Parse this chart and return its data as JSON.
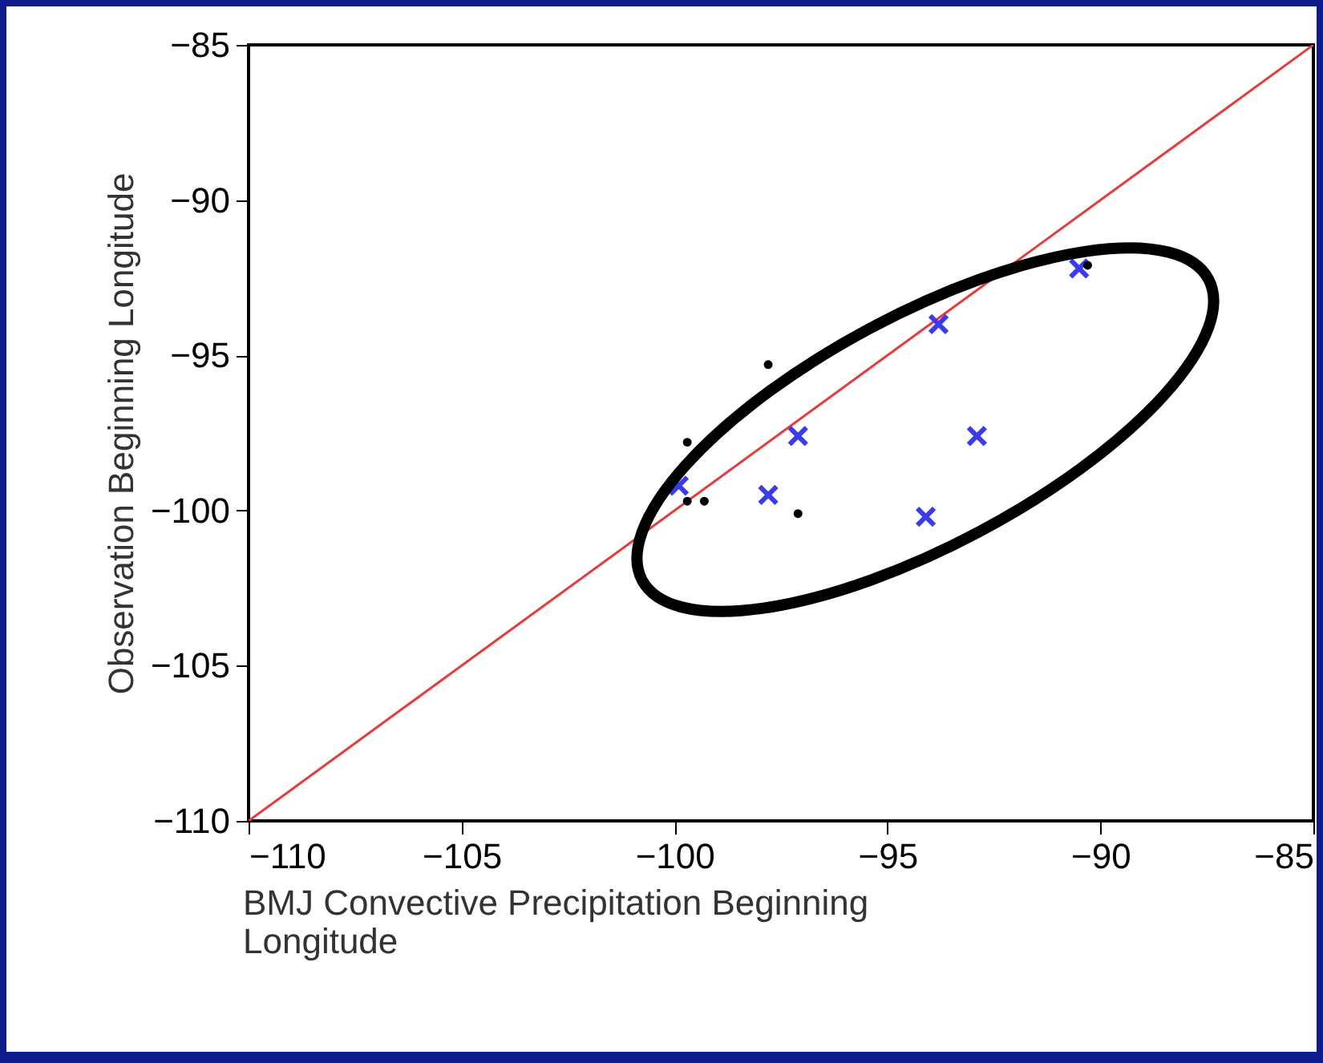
{
  "chart_data": {
    "type": "scatter",
    "xlabel": "BMJ Convective Precipitation Beginning Longitude",
    "ylabel": "Observation Beginning Longitude",
    "xlim": [
      -110,
      -85
    ],
    "ylim": [
      -110,
      -85
    ],
    "xticks": [
      -110,
      -105,
      -100,
      -95,
      -90,
      -85
    ],
    "yticks": [
      -110,
      -105,
      -100,
      -95,
      -90,
      -85
    ],
    "grid": false,
    "series": [
      {
        "type": "line",
        "color": "#e83a3a",
        "line_style": "solid",
        "marker": "none",
        "x": [
          -110,
          -85
        ],
        "values": [
          -110,
          -85
        ]
      },
      {
        "color": "#3a3af0",
        "marker": "cross",
        "x": [
          -90.5,
          -93.8,
          -97.1,
          -92.9,
          -99.9,
          -97.8,
          -94.1
        ],
        "values": [
          -92.2,
          -94.0,
          -97.6,
          -97.6,
          -99.2,
          -99.5,
          -100.2
        ]
      },
      {
        "color": "#000000",
        "marker": "circle",
        "x": [
          -97.8,
          -99.7,
          -99.3,
          -97.1,
          -99.7,
          -90.3
        ],
        "values": [
          -95.3,
          -99.7,
          -99.7,
          -100.1,
          -97.8,
          -92.1
        ]
      }
    ]
  }
}
